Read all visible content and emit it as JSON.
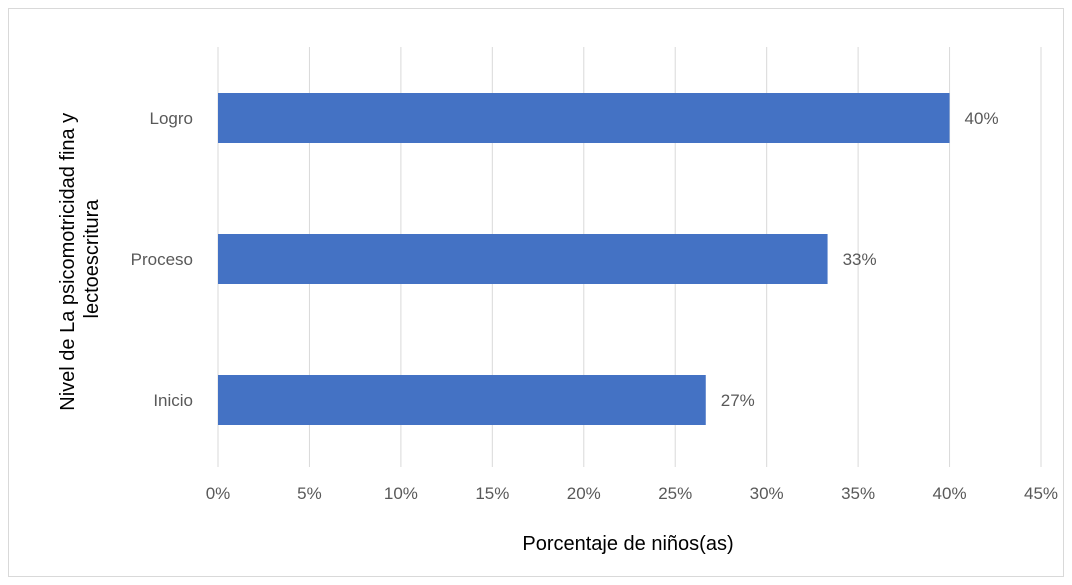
{
  "chart_data": {
    "type": "bar",
    "orientation": "horizontal",
    "categories": [
      "Logro",
      "Proceso",
      "Inicio"
    ],
    "values": [
      40,
      33.33,
      26.67
    ],
    "data_labels": [
      "40%",
      "33%",
      "27%"
    ],
    "xlabel": "Porcentaje de niños(as)",
    "ylabel_lines": [
      "Nivel de La psicomotricidad fina y",
      "lectoescritura"
    ],
    "xlim": [
      0,
      45
    ],
    "xticks": [
      0,
      5,
      10,
      15,
      20,
      25,
      30,
      35,
      40,
      45
    ],
    "xtick_labels": [
      "0%",
      "5%",
      "10%",
      "15%",
      "20%",
      "25%",
      "30%",
      "35%",
      "40%",
      "45%"
    ],
    "grid": "vertical",
    "legend": "none",
    "colors": {
      "bar": "#4472c4",
      "grid": "#d9d9d9",
      "text": "#595959",
      "title": "#000000"
    }
  }
}
